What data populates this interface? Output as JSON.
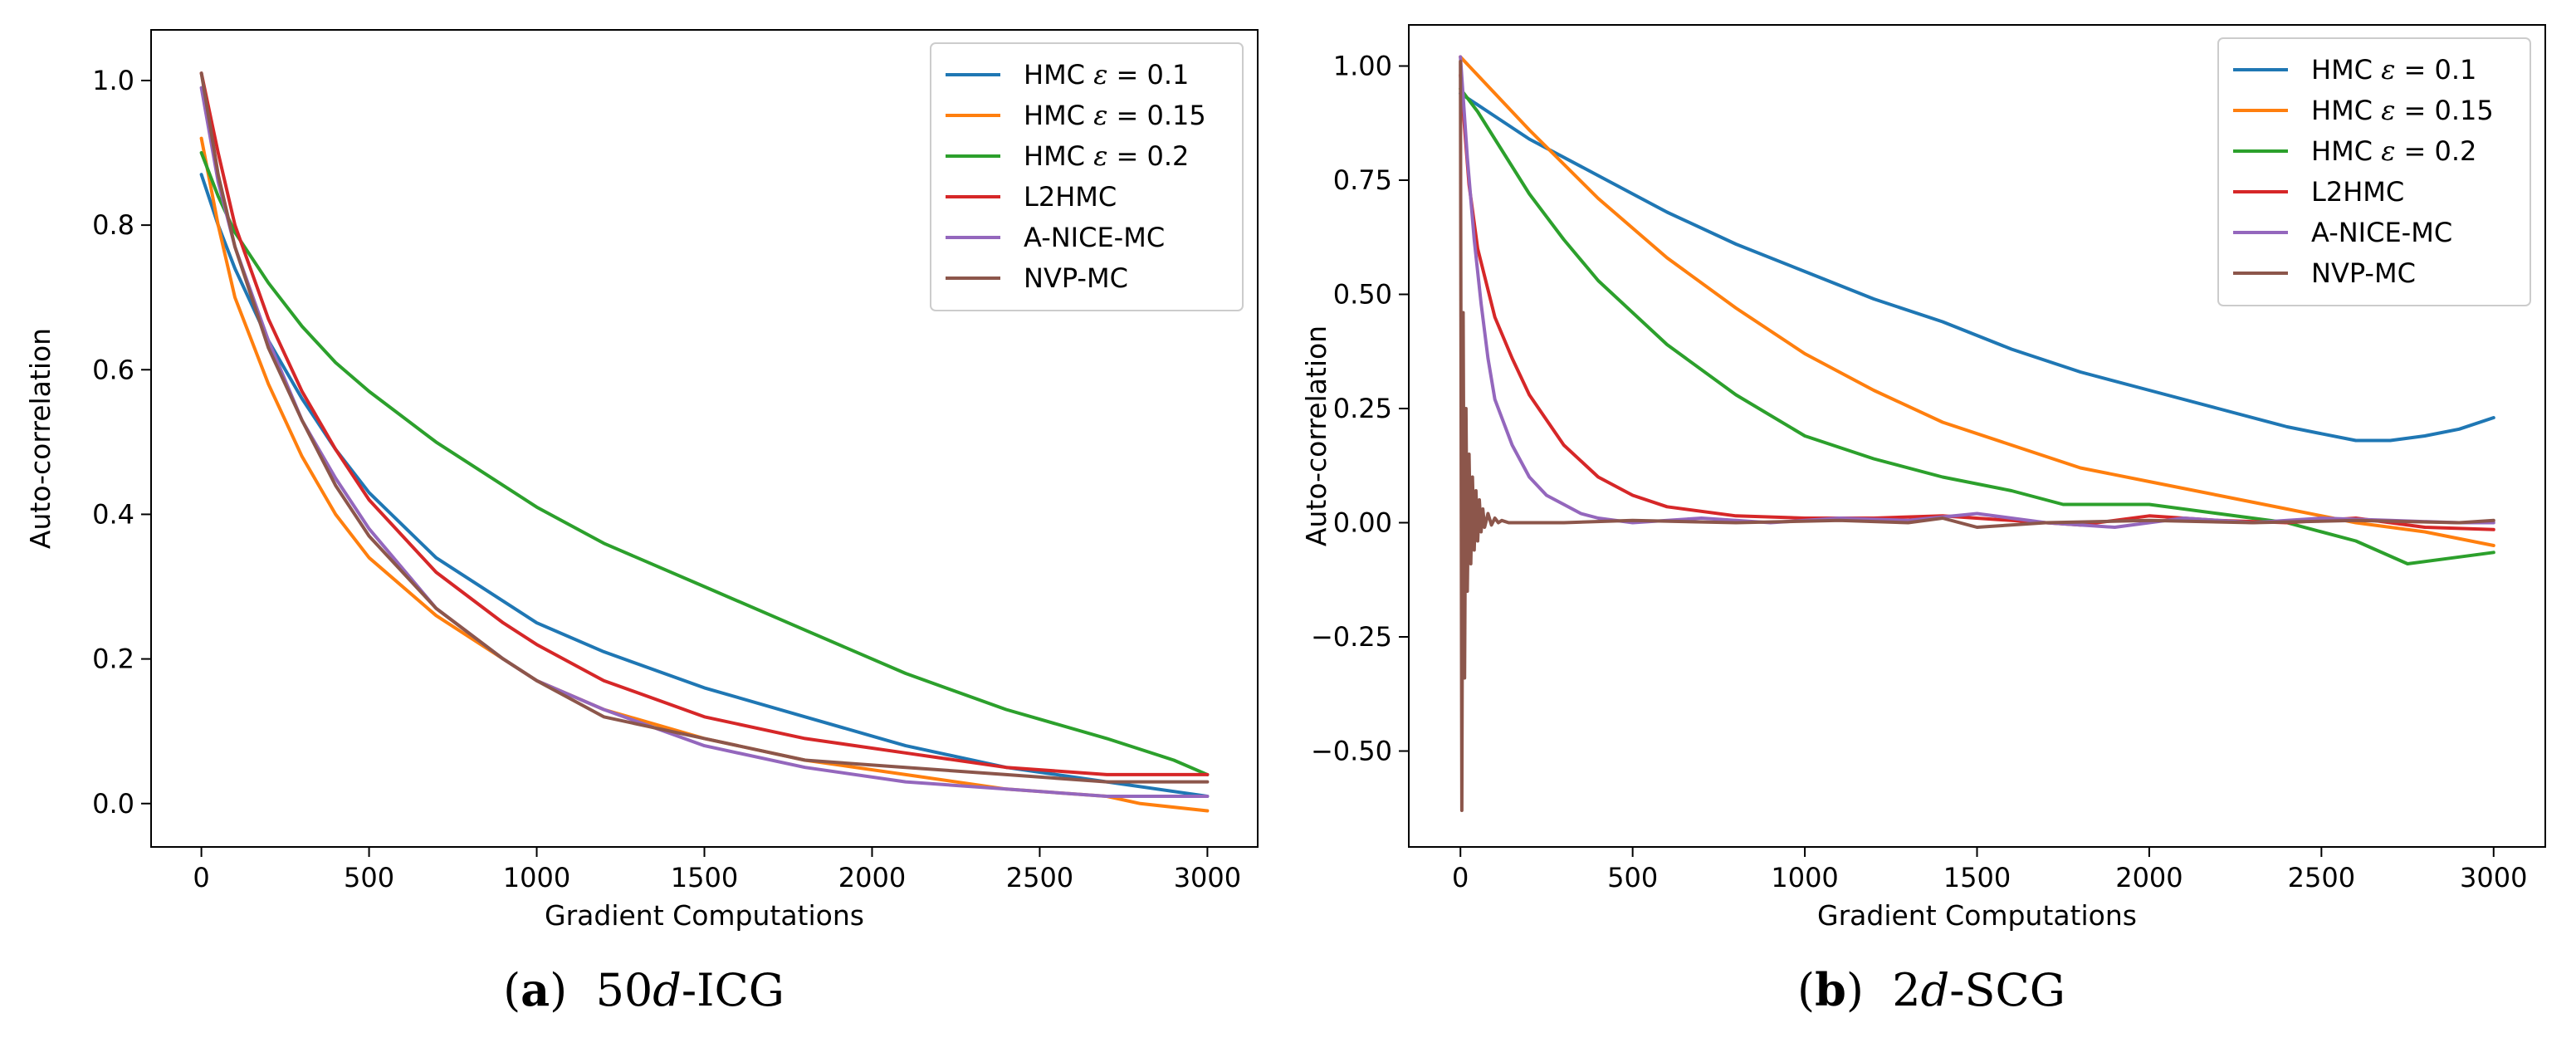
{
  "colors": {
    "hmc_01": "#1f77b4",
    "hmc_015": "#ff7f0e",
    "hmc_02": "#2ca02c",
    "l2hmc": "#d62728",
    "anice": "#9467bd",
    "nvp": "#8c564b"
  },
  "chart_data": [
    {
      "id": "a",
      "type": "line",
      "caption": {
        "letter": "a",
        "prefix": "50",
        "italic": "d",
        "suffix": "-ICG"
      },
      "xlabel": "Gradient Computations",
      "ylabel": "Auto-correlation",
      "xlim": [
        -150,
        3150
      ],
      "ylim": [
        -0.06,
        1.07
      ],
      "xticks": [
        0,
        500,
        1000,
        1500,
        2000,
        2500,
        3000
      ],
      "xtick_labels": [
        "0",
        "500",
        "1000",
        "1500",
        "2000",
        "2500",
        "3000"
      ],
      "yticks": [
        0.0,
        0.2,
        0.4,
        0.6,
        0.8,
        1.0
      ],
      "ytick_labels": [
        "0.0",
        "0.2",
        "0.4",
        "0.6",
        "0.8",
        "1.0"
      ],
      "legend_position": "top-right",
      "series": [
        {
          "name": "HMC ε = 0.1",
          "label_pre": "HMC ",
          "symbol": "ε",
          "label_post": " = 0.1",
          "color_key": "hmc_01",
          "x": [
            0,
            50,
            100,
            200,
            300,
            400,
            500,
            700,
            900,
            1000,
            1200,
            1500,
            1800,
            2100,
            2400,
            2700,
            3000
          ],
          "y": [
            0.87,
            0.8,
            0.74,
            0.64,
            0.56,
            0.49,
            0.43,
            0.34,
            0.28,
            0.25,
            0.21,
            0.16,
            0.12,
            0.08,
            0.05,
            0.03,
            0.01
          ]
        },
        {
          "name": "HMC ε = 0.15",
          "label_pre": "HMC ",
          "symbol": "ε",
          "label_post": " = 0.15",
          "color_key": "hmc_015",
          "x": [
            0,
            50,
            100,
            200,
            300,
            400,
            500,
            700,
            900,
            1000,
            1200,
            1500,
            1800,
            2100,
            2400,
            2700,
            2800,
            3000
          ],
          "y": [
            0.92,
            0.8,
            0.7,
            0.58,
            0.48,
            0.4,
            0.34,
            0.26,
            0.2,
            0.17,
            0.13,
            0.09,
            0.06,
            0.04,
            0.02,
            0.01,
            0.0,
            -0.01
          ]
        },
        {
          "name": "HMC ε = 0.2",
          "label_pre": "HMC ",
          "symbol": "ε",
          "label_post": " = 0.2",
          "color_key": "hmc_02",
          "x": [
            0,
            50,
            100,
            200,
            300,
            400,
            500,
            700,
            900,
            1000,
            1200,
            1500,
            1800,
            2100,
            2400,
            2700,
            2900,
            3000
          ],
          "y": [
            0.9,
            0.84,
            0.79,
            0.72,
            0.66,
            0.61,
            0.57,
            0.5,
            0.44,
            0.41,
            0.36,
            0.3,
            0.24,
            0.18,
            0.13,
            0.09,
            0.06,
            0.04
          ]
        },
        {
          "name": "L2HMC",
          "label_pre": "L2HMC",
          "symbol": "",
          "label_post": "",
          "color_key": "l2hmc",
          "x": [
            0,
            50,
            100,
            200,
            300,
            400,
            500,
            700,
            900,
            1000,
            1200,
            1500,
            1800,
            2100,
            2400,
            2700,
            3000
          ],
          "y": [
            1.01,
            0.9,
            0.8,
            0.67,
            0.57,
            0.49,
            0.42,
            0.32,
            0.25,
            0.22,
            0.17,
            0.12,
            0.09,
            0.07,
            0.05,
            0.04,
            0.04
          ]
        },
        {
          "name": "A-NICE-MC",
          "label_pre": "A-NICE-MC",
          "symbol": "",
          "label_post": "",
          "color_key": "anice",
          "x": [
            0,
            50,
            100,
            200,
            300,
            400,
            500,
            700,
            900,
            1000,
            1200,
            1500,
            1800,
            2100,
            2400,
            2700,
            3000
          ],
          "y": [
            0.99,
            0.86,
            0.77,
            0.64,
            0.53,
            0.45,
            0.38,
            0.27,
            0.2,
            0.17,
            0.13,
            0.08,
            0.05,
            0.03,
            0.02,
            0.01,
            0.01
          ]
        },
        {
          "name": "NVP-MC",
          "label_pre": "NVP-MC",
          "symbol": "",
          "label_post": "",
          "color_key": "nvp",
          "x": [
            0,
            50,
            100,
            200,
            300,
            400,
            500,
            700,
            900,
            1000,
            1200,
            1500,
            1800,
            2100,
            2400,
            2700,
            3000
          ],
          "y": [
            1.01,
            0.87,
            0.77,
            0.63,
            0.53,
            0.44,
            0.37,
            0.27,
            0.2,
            0.17,
            0.12,
            0.09,
            0.06,
            0.05,
            0.04,
            0.03,
            0.03
          ]
        }
      ]
    },
    {
      "id": "b",
      "type": "line",
      "caption": {
        "letter": "b",
        "prefix": "2",
        "italic": "d",
        "suffix": "-SCG"
      },
      "xlabel": "Gradient Computations",
      "ylabel": "Auto-correlation",
      "xlim": [
        -150,
        3150
      ],
      "ylim": [
        -0.71,
        1.09
      ],
      "xticks": [
        0,
        500,
        1000,
        1500,
        2000,
        2500,
        3000
      ],
      "xtick_labels": [
        "0",
        "500",
        "1000",
        "1500",
        "2000",
        "2500",
        "3000"
      ],
      "yticks": [
        -0.5,
        -0.25,
        0.0,
        0.25,
        0.5,
        0.75,
        1.0
      ],
      "ytick_labels": [
        "−0.50",
        "−0.25",
        "0.00",
        "0.25",
        "0.50",
        "0.75",
        "1.00"
      ],
      "legend_position": "top-right",
      "series": [
        {
          "name": "HMC ε = 0.1",
          "label_pre": "HMC ",
          "symbol": "ε",
          "label_post": " = 0.1",
          "color_key": "hmc_01",
          "x": [
            0,
            100,
            200,
            400,
            600,
            800,
            1000,
            1200,
            1400,
            1600,
            1800,
            2000,
            2200,
            2400,
            2500,
            2600,
            2700,
            2800,
            2900,
            3000
          ],
          "y": [
            0.94,
            0.89,
            0.84,
            0.76,
            0.68,
            0.61,
            0.55,
            0.49,
            0.44,
            0.38,
            0.33,
            0.29,
            0.25,
            0.21,
            0.195,
            0.18,
            0.18,
            0.19,
            0.205,
            0.23
          ]
        },
        {
          "name": "HMC ε = 0.15",
          "label_pre": "HMC ",
          "symbol": "ε",
          "label_post": " = 0.15",
          "color_key": "hmc_015",
          "x": [
            0,
            100,
            200,
            400,
            600,
            800,
            1000,
            1200,
            1400,
            1600,
            1800,
            2000,
            2200,
            2400,
            2600,
            2800,
            3000
          ],
          "y": [
            1.02,
            0.94,
            0.86,
            0.71,
            0.58,
            0.47,
            0.37,
            0.29,
            0.22,
            0.17,
            0.12,
            0.09,
            0.06,
            0.03,
            0.0,
            -0.02,
            -0.05
          ]
        },
        {
          "name": "HMC ε = 0.2",
          "label_pre": "HMC ",
          "symbol": "ε",
          "label_post": " = 0.2",
          "color_key": "hmc_02",
          "x": [
            0,
            50,
            100,
            200,
            300,
            400,
            600,
            800,
            1000,
            1200,
            1400,
            1600,
            1750,
            1800,
            2000,
            2200,
            2400,
            2600,
            2750,
            2900,
            3000
          ],
          "y": [
            0.95,
            0.9,
            0.84,
            0.72,
            0.62,
            0.53,
            0.39,
            0.28,
            0.19,
            0.14,
            0.1,
            0.07,
            0.04,
            0.04,
            0.04,
            0.02,
            0.0,
            -0.04,
            -0.09,
            -0.075,
            -0.065
          ]
        },
        {
          "name": "L2HMC",
          "label_pre": "L2HMC",
          "symbol": "",
          "label_post": "",
          "color_key": "l2hmc",
          "x": [
            0,
            25,
            50,
            100,
            150,
            200,
            300,
            400,
            500,
            600,
            800,
            1000,
            1200,
            1400,
            1600,
            1800,
            2000,
            2200,
            2400,
            2600,
            2800,
            3000
          ],
          "y": [
            0.98,
            0.74,
            0.6,
            0.45,
            0.36,
            0.28,
            0.17,
            0.1,
            0.06,
            0.035,
            0.015,
            0.01,
            0.01,
            0.015,
            0.005,
            -0.005,
            0.015,
            0.005,
            0.0,
            0.01,
            -0.01,
            -0.015
          ]
        },
        {
          "name": "A-NICE-MC",
          "label_pre": "A-NICE-MC",
          "symbol": "",
          "label_post": "",
          "color_key": "anice",
          "x": [
            0,
            20,
            40,
            60,
            80,
            100,
            150,
            200,
            250,
            300,
            350,
            400,
            500,
            700,
            900,
            1100,
            1300,
            1500,
            1700,
            1900,
            2100,
            2300,
            2500,
            2700,
            2900,
            3000
          ],
          "y": [
            1.02,
            0.8,
            0.62,
            0.48,
            0.36,
            0.27,
            0.17,
            0.1,
            0.06,
            0.04,
            0.02,
            0.01,
            0.0,
            0.01,
            0.0,
            0.01,
            0.005,
            0.02,
            0.0,
            -0.01,
            0.01,
            0.0,
            0.01,
            0.005,
            0.0,
            0.0
          ]
        },
        {
          "name": "NVP-MC",
          "label_pre": "NVP-MC",
          "symbol": "",
          "label_post": "",
          "color_key": "nvp",
          "x": [
            0,
            4,
            8,
            12,
            16,
            20,
            25,
            30,
            35,
            40,
            45,
            50,
            55,
            60,
            65,
            70,
            80,
            90,
            100,
            110,
            120,
            140,
            160,
            200,
            300,
            500,
            800,
            1100,
            1300,
            1400,
            1500,
            1700,
            2000,
            2300,
            2600,
            2900,
            3000
          ],
          "y": [
            1.01,
            -0.63,
            0.46,
            -0.34,
            0.25,
            -0.15,
            0.15,
            -0.09,
            0.1,
            -0.06,
            0.07,
            -0.04,
            0.05,
            -0.02,
            0.03,
            -0.01,
            0.02,
            -0.005,
            0.01,
            0.0,
            0.005,
            0.0,
            0.0,
            0.0,
            0.0,
            0.005,
            0.0,
            0.005,
            0.0,
            0.01,
            -0.01,
            0.0,
            0.005,
            0.0,
            0.005,
            0.0,
            0.005
          ]
        }
      ]
    }
  ]
}
